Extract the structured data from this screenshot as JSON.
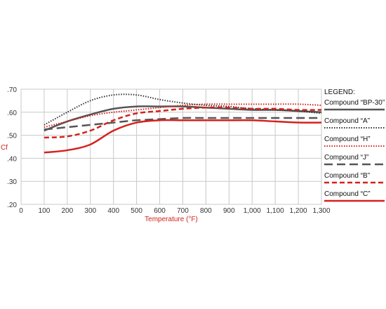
{
  "chart_data": {
    "type": "line",
    "xlabel": "Temperature (°F)",
    "ylabel": "Cf",
    "xlim": [
      0,
      1300
    ],
    "ylim": [
      0.2,
      0.7
    ],
    "x_ticks": [
      "0",
      "100",
      "200",
      "300",
      "400",
      "500",
      "600",
      "700",
      "800",
      "900",
      "1,000",
      "1,100",
      "1,200",
      "1,300"
    ],
    "y_ticks": [
      ".20",
      ".30",
      ".40",
      ".50",
      ".60",
      ".70"
    ],
    "grid": true,
    "legend_title": "LEGEND:",
    "legend_position": "right",
    "x": [
      100,
      200,
      300,
      400,
      500,
      600,
      700,
      800,
      900,
      1000,
      1100,
      1200,
      1300
    ],
    "series": [
      {
        "name": "Compound “BP-30”",
        "color": "#555555",
        "style": "solid",
        "values": [
          0.52,
          0.56,
          0.59,
          0.615,
          0.625,
          0.625,
          0.625,
          0.62,
          0.615,
          0.61,
          0.61,
          0.605,
          0.6
        ]
      },
      {
        "name": "Compound “A”",
        "color": "#333333",
        "style": "dotted",
        "values": [
          0.545,
          0.6,
          0.65,
          0.675,
          0.675,
          0.655,
          0.64,
          0.63,
          0.625,
          0.615,
          0.61,
          0.605,
          0.595
        ]
      },
      {
        "name": "Compound “H”",
        "color": "#d4221c",
        "style": "dotted",
        "values": [
          0.535,
          0.56,
          0.585,
          0.6,
          0.61,
          0.62,
          0.63,
          0.635,
          0.635,
          0.635,
          0.635,
          0.635,
          0.63
        ]
      },
      {
        "name": "Compound “J”",
        "color": "#555555",
        "style": "longdash",
        "values": [
          0.525,
          0.535,
          0.545,
          0.555,
          0.565,
          0.57,
          0.575,
          0.575,
          0.575,
          0.575,
          0.575,
          0.575,
          0.575
        ]
      },
      {
        "name": "Compound “B”",
        "color": "#d4221c",
        "style": "dashed",
        "values": [
          0.49,
          0.495,
          0.52,
          0.565,
          0.595,
          0.605,
          0.615,
          0.62,
          0.62,
          0.615,
          0.615,
          0.61,
          0.61
        ]
      },
      {
        "name": "Compound “C”",
        "color": "#d4221c",
        "style": "solid",
        "values": [
          0.425,
          0.435,
          0.46,
          0.52,
          0.555,
          0.565,
          0.565,
          0.565,
          0.565,
          0.565,
          0.56,
          0.555,
          0.555
        ]
      }
    ]
  }
}
